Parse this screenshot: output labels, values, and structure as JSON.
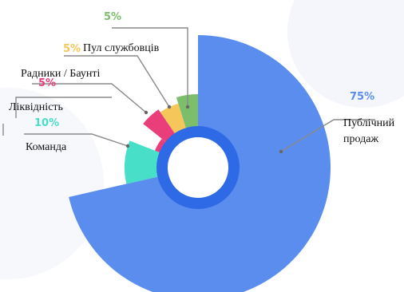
{
  "chart_data": {
    "type": "pie",
    "categories": [
      "Публічний продаж",
      "Пул службовців",
      "Радники / Баунті",
      "Ліквідність",
      "Команда",
      ""
    ],
    "values": [
      75,
      5,
      5,
      5,
      10,
      5
    ],
    "labels": {
      "public_sale_line1": "Публічний",
      "public_sale_line2": "продаж",
      "public_sale_pct": "75%",
      "employee_pool": "Пул службовців",
      "employee_pool_pct": "5%",
      "advisors": "Радники / Баунті",
      "advisors_pct": "5%",
      "liquidity": "Ліквідність",
      "team": "Команда",
      "team_pct": "10%",
      "top_pct": "5%"
    },
    "colors": {
      "public_sale": "#5b8def",
      "public_sale_inner": "#2f6ae6",
      "employee_pool": "#f5c65a",
      "advisors": "#ea3e7a",
      "liquidity": "#ea3e7a",
      "team": "#47dfc8",
      "green": "#7cbe6c",
      "leader": "#8a8a8a"
    }
  }
}
